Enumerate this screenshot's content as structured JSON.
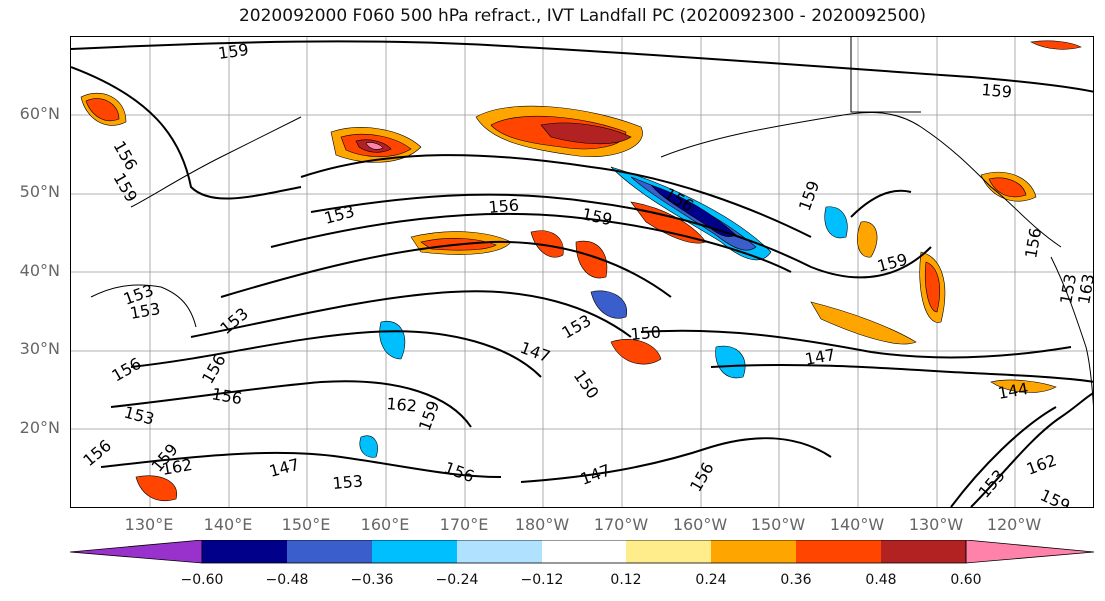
{
  "title": "2020092000 F060 500 hPa refract., IVT Landfall PC (2020092300 - 2020092500)",
  "map": {
    "lat_labels": [
      "60°N",
      "50°N",
      "40°N",
      "30°N",
      "20°N"
    ],
    "lon_labels": [
      "130°E",
      "140°E",
      "150°E",
      "160°E",
      "170°E",
      "180°W",
      "170°W",
      "160°W",
      "150°W",
      "140°W",
      "130°W",
      "120°W"
    ],
    "contour_labels": [
      "159",
      "156",
      "159",
      "153",
      "156",
      "159",
      "156",
      "159",
      "159",
      "159",
      "156",
      "153",
      "163",
      "153",
      "153",
      "156",
      "153",
      "147",
      "153",
      "150",
      "150",
      "147",
      "144",
      "162",
      "159",
      "153",
      "156",
      "156",
      "153",
      "147",
      "156",
      "162",
      "159",
      "156",
      "153",
      "162",
      "159",
      "156",
      "147"
    ]
  },
  "colorbar": {
    "ticks": [
      "−0.60",
      "−0.48",
      "−0.36",
      "−0.24",
      "−0.12",
      "0.12",
      "0.24",
      "0.36",
      "0.48",
      "0.60"
    ],
    "colors": [
      "#9932cc",
      "#00008b",
      "#3a5fcd",
      "#00bfff",
      "#b0e2ff",
      "#ffffff",
      "#ffec8b",
      "#ffa500",
      "#ff4500",
      "#b22222",
      "#ff82ab"
    ]
  }
}
